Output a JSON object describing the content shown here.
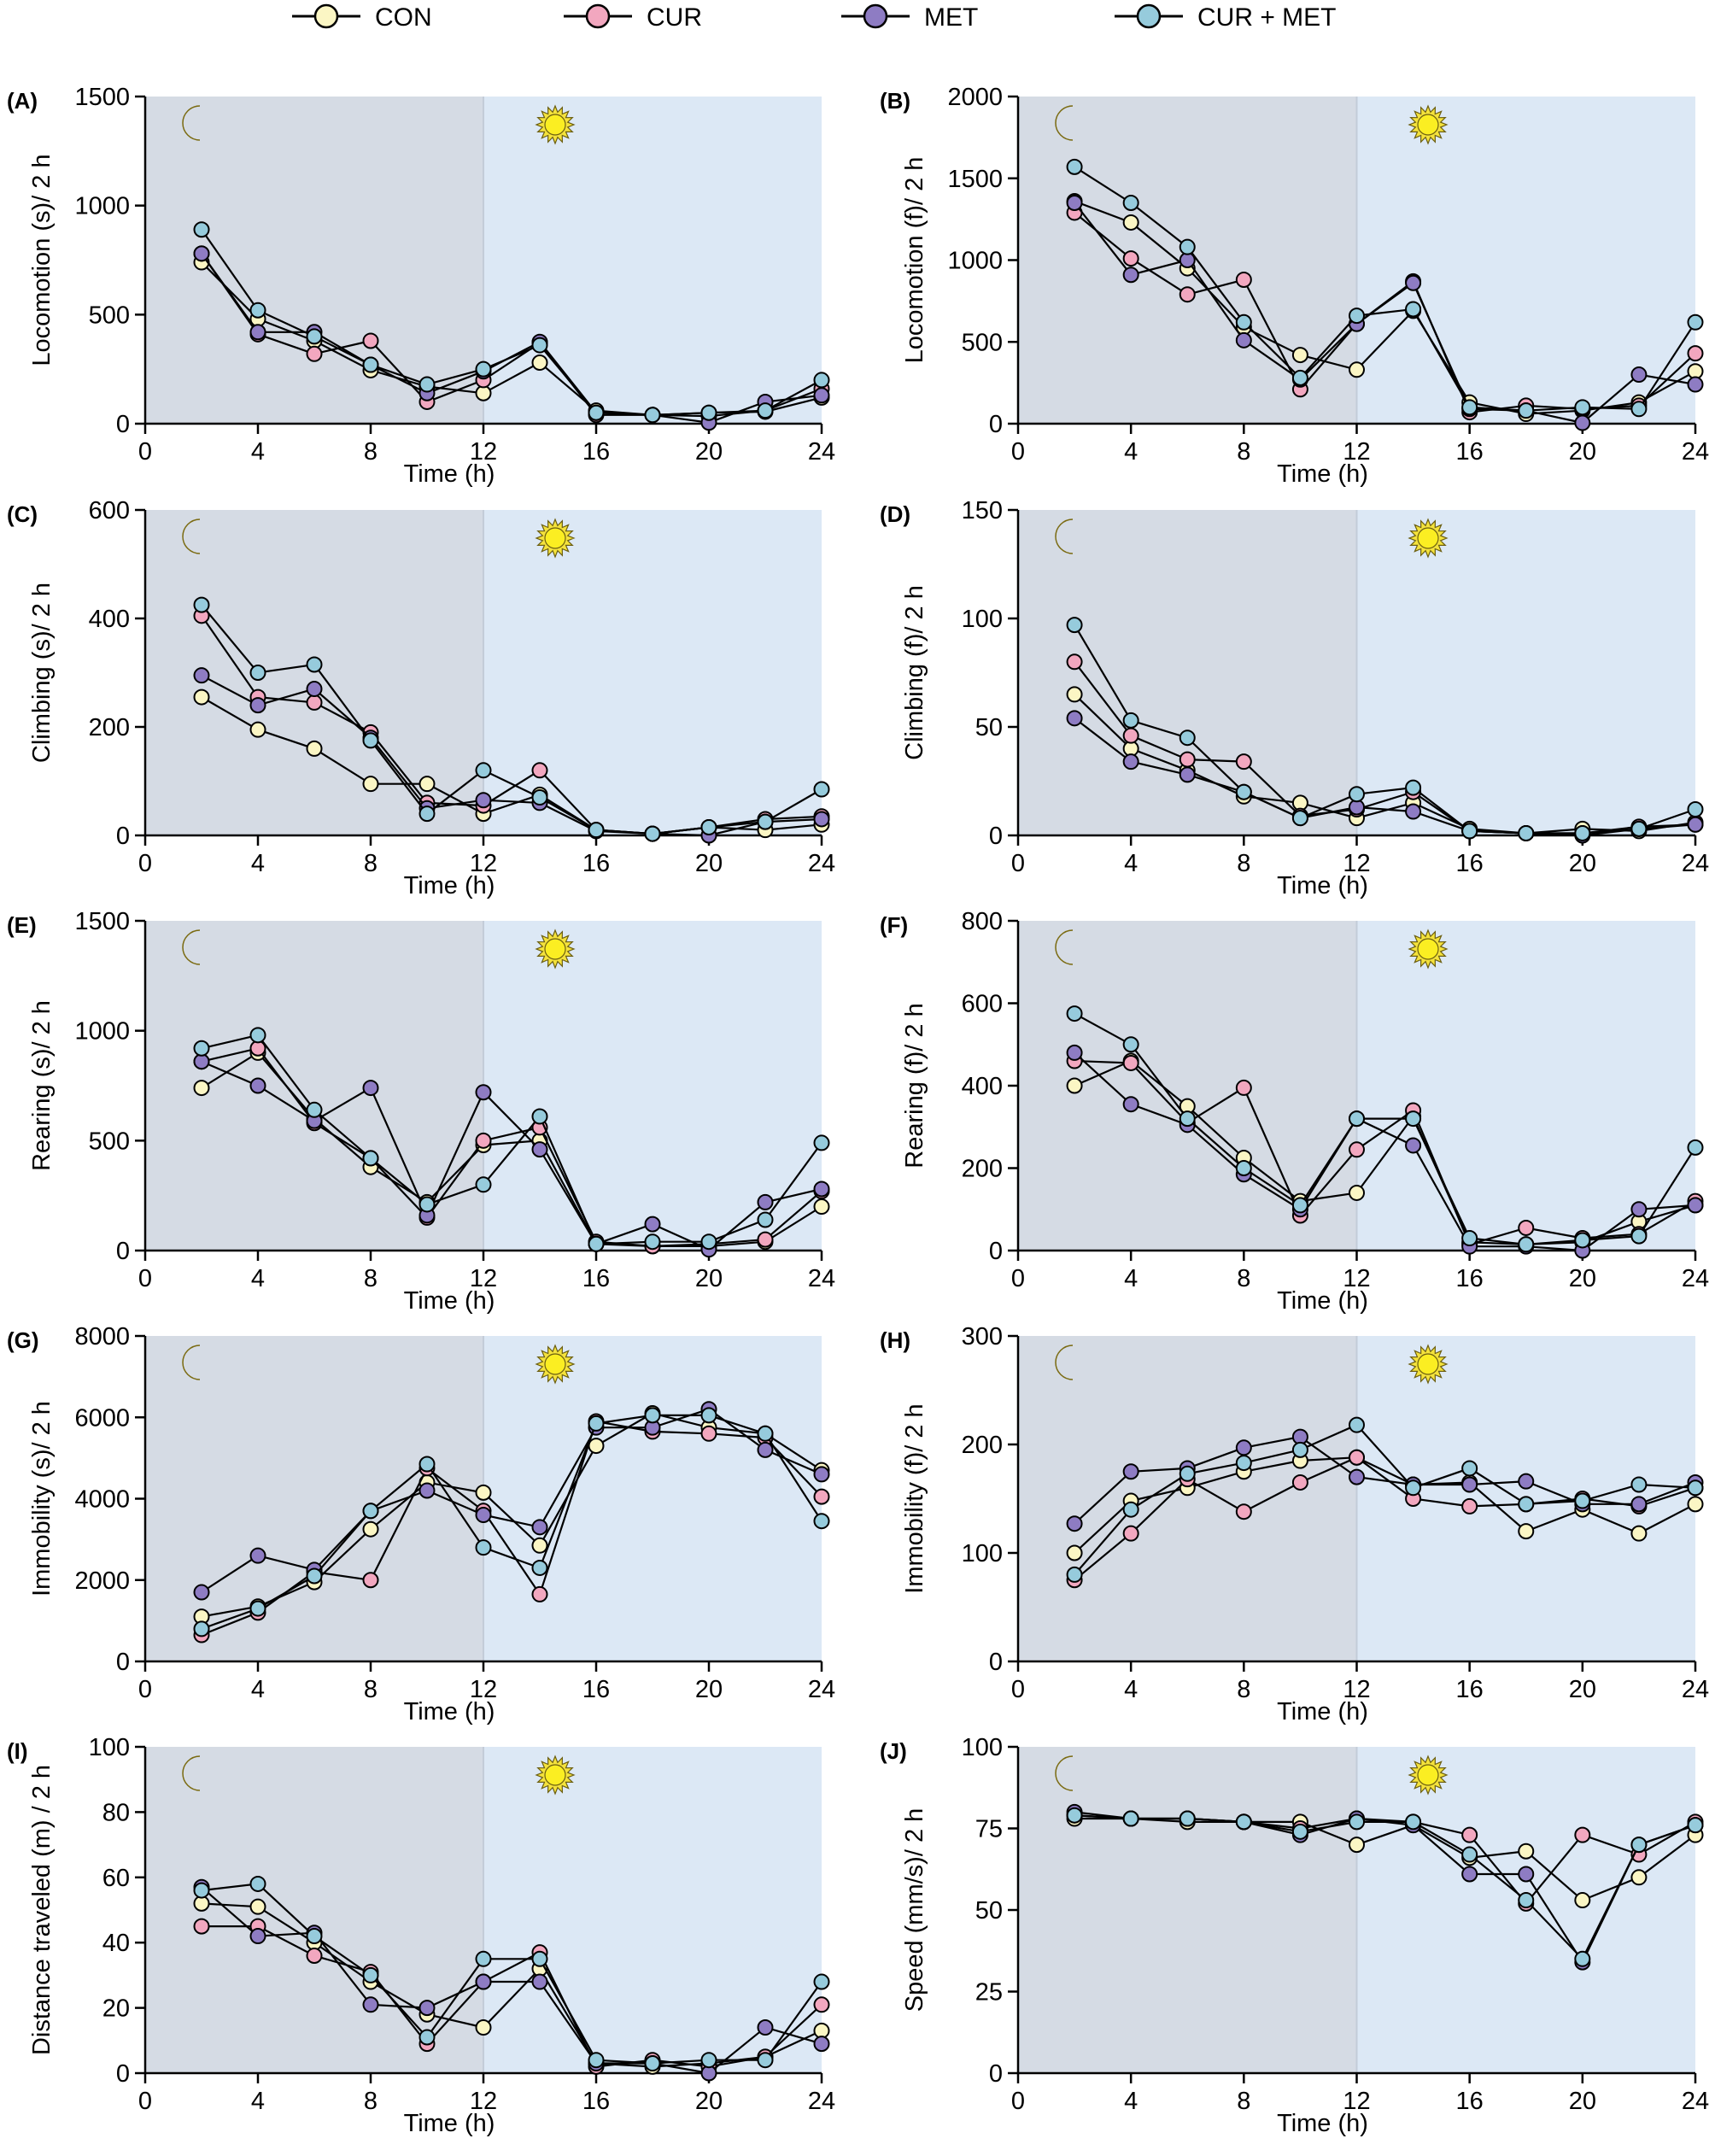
{
  "legend": [
    {
      "label": "CON",
      "color": "#fbf6c4"
    },
    {
      "label": "CUR",
      "color": "#f2a7bf"
    },
    {
      "label": "MET",
      "color": "#8e7cc3"
    },
    {
      "label": "CUR + MET",
      "color": "#96cbdc"
    }
  ],
  "shading": {
    "dark_phase": "#d5dbe4",
    "light_phase": "#dce8f5",
    "dark_icon": "moon-icon",
    "light_icon": "sun-icon"
  },
  "chart_data": [
    {
      "panel": "(A)",
      "type": "line",
      "ylabel": "Locomotion (s)/ 2 h",
      "xlabel": "Time (h)",
      "xlim": [
        0,
        24
      ],
      "xticks": [
        0,
        4,
        8,
        12,
        16,
        20,
        24
      ],
      "ylim": [
        0,
        1500
      ],
      "yticks": [
        0,
        500,
        1000,
        1500
      ],
      "x": [
        2,
        4,
        6,
        8,
        10,
        12,
        14,
        16,
        18,
        20,
        22,
        24
      ],
      "series": [
        {
          "name": "CON",
          "values": [
            740,
            480,
            380,
            245,
            170,
            140,
            280,
            60,
            40,
            50,
            55,
            120
          ]
        },
        {
          "name": "CUR",
          "values": [
            780,
            410,
            320,
            380,
            100,
            200,
            370,
            40,
            40,
            35,
            60,
            160
          ]
        },
        {
          "name": "MET",
          "values": [
            780,
            420,
            420,
            270,
            140,
            240,
            375,
            50,
            40,
            5,
            100,
            130
          ]
        },
        {
          "name": "CUR + MET",
          "values": [
            890,
            520,
            400,
            270,
            180,
            250,
            360,
            50,
            40,
            50,
            60,
            200
          ]
        }
      ]
    },
    {
      "panel": "(B)",
      "type": "line",
      "ylabel": "Locomotion (f)/ 2 h",
      "xlabel": "Time (h)",
      "xlim": [
        0,
        24
      ],
      "xticks": [
        0,
        4,
        8,
        12,
        16,
        20,
        24
      ],
      "ylim": [
        0,
        2000
      ],
      "yticks": [
        0,
        500,
        1000,
        1500,
        2000
      ],
      "x": [
        2,
        4,
        6,
        8,
        10,
        12,
        14,
        16,
        18,
        20,
        22,
        24
      ],
      "series": [
        {
          "name": "CON",
          "values": [
            1360,
            1230,
            950,
            590,
            420,
            330,
            690,
            130,
            60,
            80,
            130,
            320
          ]
        },
        {
          "name": "CUR",
          "values": [
            1290,
            1010,
            790,
            880,
            210,
            610,
            870,
            70,
            110,
            90,
            110,
            430
          ]
        },
        {
          "name": "MET",
          "values": [
            1350,
            910,
            1000,
            510,
            270,
            610,
            860,
            90,
            80,
            5,
            300,
            240
          ]
        },
        {
          "name": "CUR + MET",
          "values": [
            1570,
            1350,
            1080,
            620,
            280,
            660,
            700,
            100,
            80,
            100,
            90,
            620
          ]
        }
      ]
    },
    {
      "panel": "(C)",
      "type": "line",
      "ylabel": "Climbing (s)/ 2 h",
      "xlabel": "Time (h)",
      "xlim": [
        0,
        24
      ],
      "xticks": [
        0,
        4,
        8,
        12,
        16,
        20,
        24
      ],
      "ylim": [
        0,
        600
      ],
      "yticks": [
        0,
        200,
        400,
        600
      ],
      "x": [
        2,
        4,
        6,
        8,
        10,
        12,
        14,
        16,
        18,
        20,
        22,
        24
      ],
      "series": [
        {
          "name": "CON",
          "values": [
            255,
            195,
            160,
            95,
            95,
            40,
            75,
            10,
            3,
            15,
            10,
            20
          ]
        },
        {
          "name": "CUR",
          "values": [
            405,
            255,
            245,
            190,
            60,
            55,
            120,
            10,
            3,
            15,
            30,
            35
          ]
        },
        {
          "name": "MET",
          "values": [
            295,
            240,
            270,
            180,
            50,
            65,
            60,
            8,
            3,
            0,
            25,
            30
          ]
        },
        {
          "name": "CUR + MET",
          "values": [
            425,
            300,
            315,
            175,
            40,
            120,
            70,
            10,
            3,
            15,
            25,
            85
          ]
        }
      ]
    },
    {
      "panel": "(D)",
      "type": "line",
      "ylabel": "Climbing (f)/ 2 h",
      "xlabel": "Time (h)",
      "xlim": [
        0,
        24
      ],
      "xticks": [
        0,
        4,
        8,
        12,
        16,
        20,
        24
      ],
      "ylim": [
        0,
        150
      ],
      "yticks": [
        0,
        50,
        100,
        150
      ],
      "x": [
        2,
        4,
        6,
        8,
        10,
        12,
        14,
        16,
        18,
        20,
        22,
        24
      ],
      "series": [
        {
          "name": "CON",
          "values": [
            65,
            40,
            30,
            18,
            15,
            8,
            15,
            3,
            1,
            3,
            2,
            6
          ]
        },
        {
          "name": "CUR",
          "values": [
            80,
            46,
            35,
            34,
            9,
            12,
            20,
            2,
            1,
            1,
            4,
            5
          ]
        },
        {
          "name": "MET",
          "values": [
            54,
            34,
            28,
            20,
            8,
            13,
            11,
            2,
            1,
            0,
            3,
            5
          ]
        },
        {
          "name": "CUR + MET",
          "values": [
            97,
            53,
            45,
            20,
            8,
            19,
            22,
            2,
            1,
            1,
            3,
            12
          ]
        }
      ]
    },
    {
      "panel": "(E)",
      "type": "line",
      "ylabel": "Rearing (s)/ 2 h",
      "xlabel": "Time (h)",
      "xlim": [
        0,
        24
      ],
      "xticks": [
        0,
        4,
        8,
        12,
        16,
        20,
        24
      ],
      "ylim": [
        0,
        1500
      ],
      "yticks": [
        0,
        500,
        1000,
        1500
      ],
      "x": [
        2,
        4,
        6,
        8,
        10,
        12,
        14,
        16,
        18,
        20,
        22,
        24
      ],
      "series": [
        {
          "name": "CON",
          "values": [
            740,
            900,
            600,
            380,
            220,
            480,
            500,
            30,
            20,
            20,
            40,
            200
          ]
        },
        {
          "name": "CUR",
          "values": [
            860,
            920,
            580,
            420,
            150,
            500,
            560,
            40,
            20,
            30,
            50,
            270
          ]
        },
        {
          "name": "MET",
          "values": [
            860,
            750,
            590,
            740,
            160,
            720,
            460,
            30,
            120,
            5,
            220,
            280
          ]
        },
        {
          "name": "CUR + MET",
          "values": [
            920,
            980,
            640,
            420,
            210,
            300,
            610,
            30,
            40,
            40,
            140,
            490
          ]
        }
      ]
    },
    {
      "panel": "(F)",
      "type": "line",
      "ylabel": "Rearing (f)/ 2 h",
      "xlabel": "Time (h)",
      "xlim": [
        0,
        24
      ],
      "xticks": [
        0,
        4,
        8,
        12,
        16,
        20,
        24
      ],
      "ylim": [
        0,
        800
      ],
      "yticks": [
        0,
        200,
        400,
        600,
        800
      ],
      "x": [
        2,
        4,
        6,
        8,
        10,
        12,
        14,
        16,
        18,
        20,
        22,
        24
      ],
      "series": [
        {
          "name": "CON",
          "values": [
            400,
            460,
            350,
            225,
            120,
            140,
            325,
            20,
            15,
            20,
            70,
            110
          ]
        },
        {
          "name": "CUR",
          "values": [
            460,
            455,
            310,
            395,
            85,
            245,
            340,
            15,
            55,
            30,
            40,
            120
          ]
        },
        {
          "name": "MET",
          "values": [
            480,
            355,
            305,
            185,
            100,
            320,
            255,
            10,
            10,
            0,
            100,
            110
          ]
        },
        {
          "name": "CUR + MET",
          "values": [
            575,
            500,
            320,
            200,
            110,
            320,
            320,
            30,
            15,
            25,
            35,
            250
          ]
        }
      ]
    },
    {
      "panel": "(G)",
      "type": "line",
      "ylabel": "Immobility (s)/ 2 h",
      "xlabel": "Time (h)",
      "xlim": [
        0,
        24
      ],
      "xticks": [
        0,
        4,
        8,
        12,
        16,
        20,
        24
      ],
      "ylim": [
        0,
        8000
      ],
      "yticks": [
        0,
        2000,
        4000,
        6000,
        8000
      ],
      "x": [
        2,
        4,
        6,
        8,
        10,
        12,
        14,
        16,
        18,
        20,
        22,
        24
      ],
      "series": [
        {
          "name": "CON",
          "values": [
            1100,
            1350,
            1950,
            3250,
            4400,
            4150,
            2850,
            5300,
            6100,
            5750,
            5600,
            4700
          ]
        },
        {
          "name": "CUR",
          "values": [
            650,
            1200,
            2200,
            2000,
            4750,
            3700,
            1650,
            5900,
            5650,
            5600,
            5500,
            4050
          ]
        },
        {
          "name": "MET",
          "values": [
            1700,
            2600,
            2250,
            3700,
            4200,
            3600,
            3300,
            5750,
            5750,
            6200,
            5200,
            4600
          ]
        },
        {
          "name": "CUR + MET",
          "values": [
            800,
            1300,
            2100,
            3700,
            4850,
            2800,
            2300,
            5850,
            6050,
            6050,
            5600,
            3450
          ]
        }
      ]
    },
    {
      "panel": "(H)",
      "type": "line",
      "ylabel": "Immobility (f)/ 2 h",
      "xlabel": "Time (h)",
      "xlim": [
        0,
        24
      ],
      "xticks": [
        0,
        4,
        8,
        12,
        16,
        20,
        24
      ],
      "ylim": [
        0,
        300
      ],
      "yticks": [
        0,
        100,
        200,
        300
      ],
      "x": [
        2,
        4,
        6,
        8,
        10,
        12,
        14,
        16,
        18,
        20,
        22,
        24
      ],
      "series": [
        {
          "name": "CON",
          "values": [
            100,
            148,
            160,
            175,
            185,
            188,
            163,
            165,
            120,
            140,
            118,
            145
          ]
        },
        {
          "name": "CUR",
          "values": [
            75,
            118,
            168,
            138,
            165,
            188,
            150,
            143,
            145,
            150,
            143,
            160
          ]
        },
        {
          "name": "MET",
          "values": [
            127,
            175,
            178,
            197,
            207,
            170,
            163,
            163,
            166,
            145,
            145,
            165
          ]
        },
        {
          "name": "CUR + MET",
          "values": [
            80,
            140,
            173,
            183,
            195,
            218,
            160,
            178,
            145,
            148,
            163,
            160
          ]
        }
      ]
    },
    {
      "panel": "(I)",
      "type": "line",
      "ylabel": "Distance traveled (m) / 2 h",
      "xlabel": "Time (h)",
      "xlim": [
        0,
        24
      ],
      "xticks": [
        0,
        4,
        8,
        12,
        16,
        20,
        24
      ],
      "ylim": [
        0,
        100
      ],
      "yticks": [
        0,
        20,
        40,
        60,
        80,
        100
      ],
      "x": [
        2,
        4,
        6,
        8,
        10,
        12,
        14,
        16,
        18,
        20,
        22,
        24
      ],
      "series": [
        {
          "name": "CON",
          "values": [
            52,
            51,
            40,
            28,
            18,
            14,
            32,
            3,
            2,
            3,
            5,
            13
          ]
        },
        {
          "name": "CUR",
          "values": [
            45,
            45,
            36,
            31,
            9,
            28,
            37,
            2,
            4,
            2,
            5,
            21
          ]
        },
        {
          "name": "MET",
          "values": [
            57,
            42,
            43,
            21,
            20,
            28,
            28,
            3,
            3,
            0,
            14,
            9
          ]
        },
        {
          "name": "CUR + MET",
          "values": [
            56,
            58,
            42,
            30,
            11,
            35,
            35,
            4,
            3,
            4,
            4,
            28
          ]
        }
      ]
    },
    {
      "panel": "(J)",
      "type": "line",
      "ylabel": "Speed (mm/s)/ 2 h",
      "xlabel": "Time (h)",
      "xlim": [
        0,
        24
      ],
      "xticks": [
        0,
        4,
        8,
        12,
        16,
        20,
        24
      ],
      "ylim": [
        0,
        100
      ],
      "yticks": [
        0,
        25,
        50,
        75,
        100
      ],
      "x": [
        2,
        4,
        6,
        8,
        10,
        12,
        14,
        16,
        18,
        20,
        22,
        24
      ],
      "series": [
        {
          "name": "CON",
          "values": [
            78,
            78,
            77,
            77,
            77,
            70,
            76,
            66,
            68,
            53,
            60,
            73
          ]
        },
        {
          "name": "CUR",
          "values": [
            79,
            78,
            78,
            77,
            75,
            78,
            77,
            73,
            52,
            73,
            67,
            77
          ]
        },
        {
          "name": "MET",
          "values": [
            80,
            78,
            78,
            77,
            73,
            78,
            76,
            61,
            61,
            34,
            70,
            76
          ]
        },
        {
          "name": "CUR + MET",
          "values": [
            79,
            78,
            78,
            77,
            74,
            77,
            77,
            67,
            53,
            35,
            70,
            76
          ]
        }
      ]
    }
  ]
}
